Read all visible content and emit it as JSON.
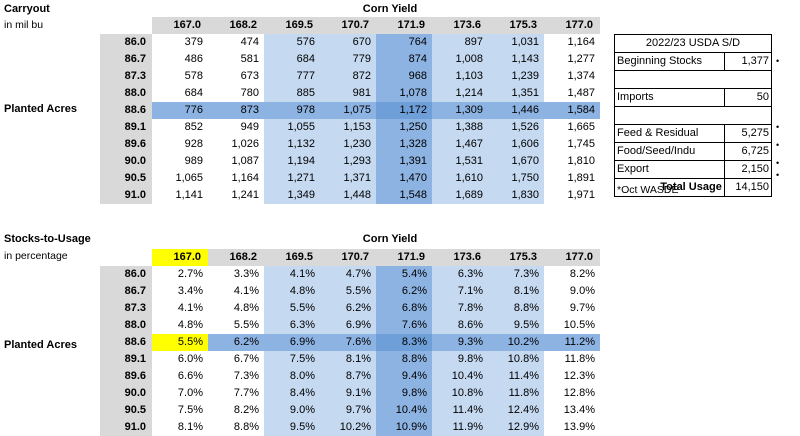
{
  "carryout": {
    "title": "Carryout",
    "subtitle": "in mil bu",
    "yield_label": "Corn Yield",
    "row_label": "Planted Acres",
    "yields": [
      "167.0",
      "168.2",
      "169.5",
      "170.7",
      "171.9",
      "173.6",
      "175.3",
      "177.0"
    ],
    "acres": [
      "86.0",
      "86.7",
      "87.3",
      "88.0",
      "88.6",
      "89.1",
      "89.6",
      "90.0",
      "90.5",
      "91.0"
    ],
    "rows": [
      [
        "379",
        "474",
        "576",
        "670",
        "764",
        "897",
        "1,031",
        "1,164"
      ],
      [
        "486",
        "581",
        "684",
        "779",
        "874",
        "1,008",
        "1,143",
        "1,277"
      ],
      [
        "578",
        "673",
        "777",
        "872",
        "968",
        "1,103",
        "1,239",
        "1,374"
      ],
      [
        "684",
        "780",
        "885",
        "981",
        "1,078",
        "1,214",
        "1,351",
        "1,487"
      ],
      [
        "776",
        "873",
        "978",
        "1,075",
        "1,172",
        "1,309",
        "1,446",
        "1,584"
      ],
      [
        "852",
        "949",
        "1,055",
        "1,153",
        "1,250",
        "1,388",
        "1,526",
        "1,665"
      ],
      [
        "928",
        "1,026",
        "1,132",
        "1,230",
        "1,328",
        "1,467",
        "1,606",
        "1,745"
      ],
      [
        "989",
        "1,087",
        "1,194",
        "1,293",
        "1,391",
        "1,531",
        "1,670",
        "1,810"
      ],
      [
        "1,065",
        "1,164",
        "1,271",
        "1,371",
        "1,470",
        "1,610",
        "1,750",
        "1,891"
      ],
      [
        "1,141",
        "1,241",
        "1,349",
        "1,448",
        "1,548",
        "1,689",
        "1,830",
        "1,971"
      ]
    ]
  },
  "stocks_to_usage": {
    "title": "Stocks-to-Usage",
    "subtitle": "in percentage",
    "yield_label": "Corn Yield",
    "row_label": "Planted Acres",
    "yields": [
      "167.0",
      "168.2",
      "169.5",
      "170.7",
      "171.9",
      "173.6",
      "175.3",
      "177.0"
    ],
    "acres": [
      "86.0",
      "86.7",
      "87.3",
      "88.0",
      "88.6",
      "89.1",
      "89.6",
      "90.0",
      "90.5",
      "91.0"
    ],
    "rows": [
      [
        "2.7%",
        "3.3%",
        "4.1%",
        "4.7%",
        "5.4%",
        "6.3%",
        "7.3%",
        "8.2%"
      ],
      [
        "3.4%",
        "4.1%",
        "4.8%",
        "5.5%",
        "6.2%",
        "7.1%",
        "8.1%",
        "9.0%"
      ],
      [
        "4.1%",
        "4.8%",
        "5.5%",
        "6.2%",
        "6.8%",
        "7.8%",
        "8.8%",
        "9.7%"
      ],
      [
        "4.8%",
        "5.5%",
        "6.3%",
        "6.9%",
        "7.6%",
        "8.6%",
        "9.5%",
        "10.5%"
      ],
      [
        "5.5%",
        "6.2%",
        "6.9%",
        "7.6%",
        "8.3%",
        "9.3%",
        "10.2%",
        "11.2%"
      ],
      [
        "6.0%",
        "6.7%",
        "7.5%",
        "8.1%",
        "8.8%",
        "9.8%",
        "10.8%",
        "11.8%"
      ],
      [
        "6.6%",
        "7.3%",
        "8.0%",
        "8.7%",
        "9.4%",
        "10.4%",
        "11.4%",
        "12.3%"
      ],
      [
        "7.0%",
        "7.7%",
        "8.4%",
        "9.1%",
        "9.8%",
        "10.8%",
        "11.8%",
        "12.8%"
      ],
      [
        "7.5%",
        "8.2%",
        "9.0%",
        "9.7%",
        "10.4%",
        "11.4%",
        "12.4%",
        "13.4%"
      ],
      [
        "8.1%",
        "8.8%",
        "9.5%",
        "10.2%",
        "10.9%",
        "11.9%",
        "12.9%",
        "13.9%"
      ]
    ]
  },
  "usda_sd": {
    "title": "2022/23 USDA S/D",
    "beginning_stocks_label": "Beginning Stocks",
    "beginning_stocks": "1,377",
    "imports_label": "Imports",
    "imports": "50",
    "feed_label": "Feed & Residual",
    "feed": "5,275",
    "food_label": "Food/Seed/Indu",
    "food": "6,725",
    "export_label": "Export",
    "export": "2,150",
    "total_label": "Total Usage",
    "total": "14,150",
    "marker": "•",
    "note": "*Oct WASDE"
  },
  "colors": {
    "header_gray": "#d9d9d9",
    "light_blue": "#c5d9f1",
    "mid_blue": "#8db3e2",
    "highlight_yellow": "#ffff00"
  }
}
